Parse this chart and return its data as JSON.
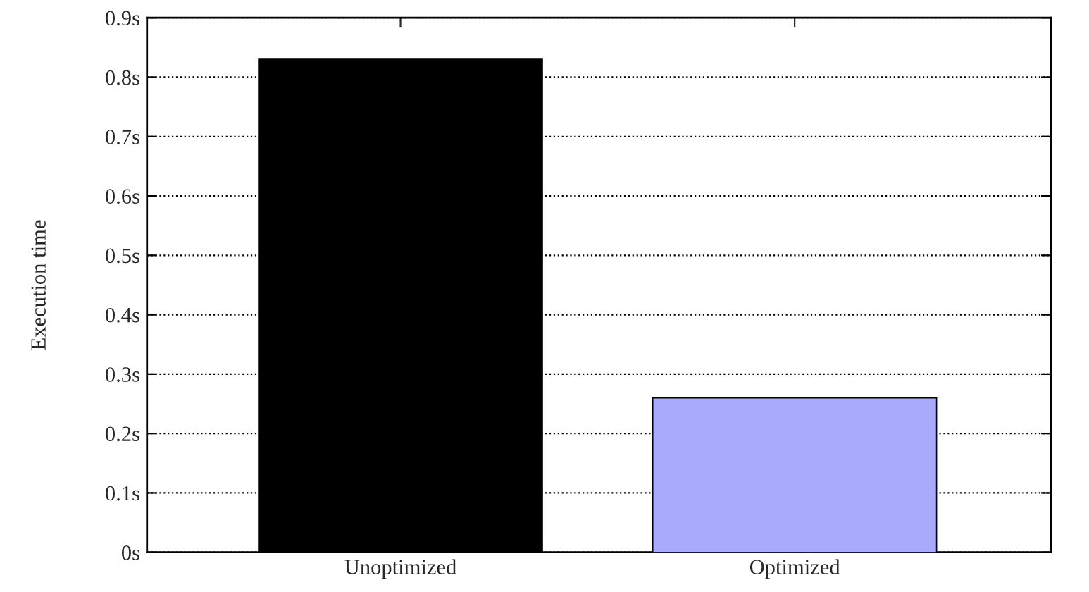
{
  "chart_data": {
    "type": "bar",
    "ylabel": "Execution time",
    "categories": [
      "Unoptimized",
      "Optimized"
    ],
    "values": [
      0.83,
      0.26
    ],
    "colors": [
      "#000000",
      "#aaaafc"
    ],
    "ylim": [
      0,
      0.9
    ],
    "yticks": [
      {
        "value": 0,
        "label": "0s"
      },
      {
        "value": 0.1,
        "label": "0.1s"
      },
      {
        "value": 0.2,
        "label": "0.2s"
      },
      {
        "value": 0.3,
        "label": "0.3s"
      },
      {
        "value": 0.4,
        "label": "0.4s"
      },
      {
        "value": 0.5,
        "label": "0.5s"
      },
      {
        "value": 0.6,
        "label": "0.6s"
      },
      {
        "value": 0.7,
        "label": "0.7s"
      },
      {
        "value": 0.8,
        "label": "0.8s"
      },
      {
        "value": 0.9,
        "label": "0.9s"
      }
    ],
    "grid": "y",
    "line_style": "dotted"
  }
}
